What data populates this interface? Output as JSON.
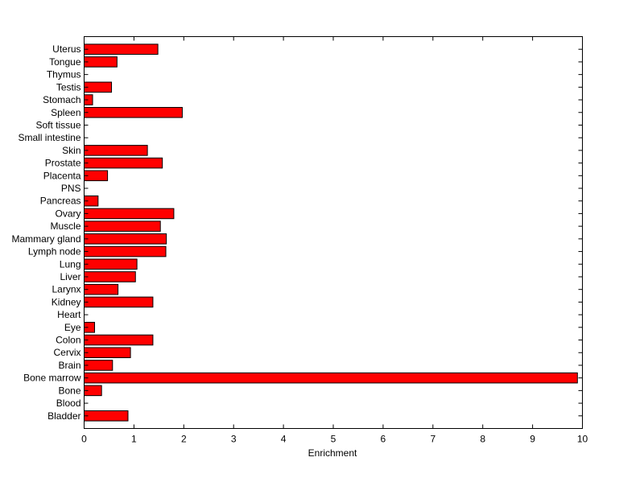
{
  "chart_data": {
    "type": "bar",
    "orientation": "horizontal",
    "title": "",
    "xlabel": "Enrichment",
    "ylabel": "",
    "xlim": [
      0,
      10
    ],
    "xticks": [
      0,
      1,
      2,
      3,
      4,
      5,
      6,
      7,
      8,
      9,
      10
    ],
    "grid": false,
    "bar_color": "#ff0000",
    "bar_edge_color": "#000000",
    "categories": [
      "Bladder",
      "Blood",
      "Bone",
      "Bone marrow",
      "Brain",
      "Cervix",
      "Colon",
      "Eye",
      "Heart",
      "Kidney",
      "Larynx",
      "Liver",
      "Lung",
      "Lymph node",
      "Mammary gland",
      "Muscle",
      "Ovary",
      "Pancreas",
      "PNS",
      "Placenta",
      "Prostate",
      "Skin",
      "Small intestine",
      "Soft tissue",
      "Spleen",
      "Stomach",
      "Testis",
      "Thymus",
      "Tongue",
      "Uterus"
    ],
    "values": [
      0.88,
      0,
      0.35,
      9.9,
      0.57,
      0.93,
      1.38,
      0.21,
      0,
      1.38,
      0.68,
      1.03,
      1.06,
      1.64,
      1.65,
      1.53,
      1.8,
      0.28,
      0,
      0.47,
      1.57,
      1.27,
      0,
      0,
      1.97,
      0.17,
      0.55,
      0,
      0.66,
      1.48
    ]
  }
}
